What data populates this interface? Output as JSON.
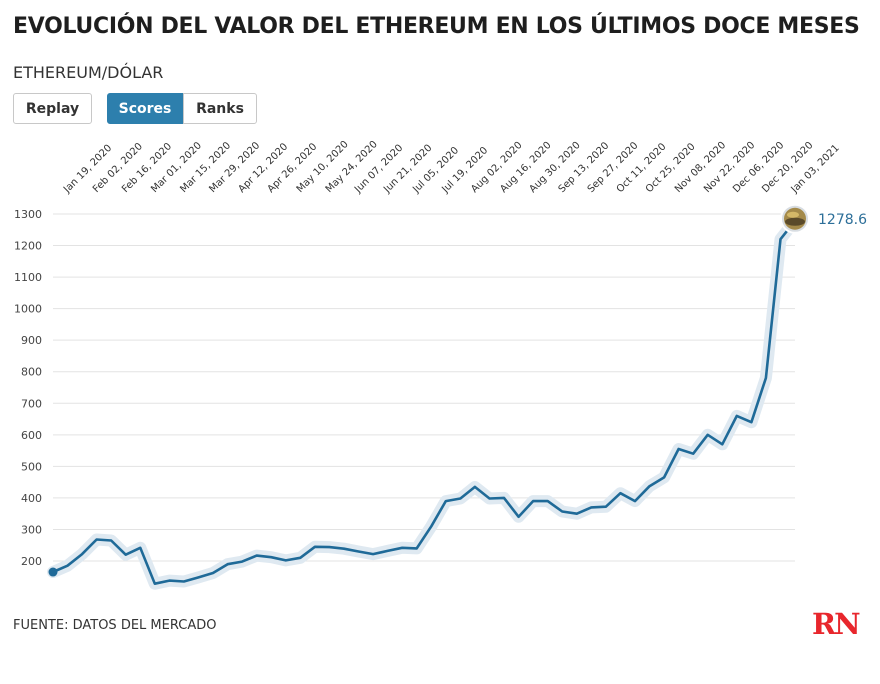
{
  "title": "EVOLUCIÓN DEL VALOR DEL ETHEREUM EN LOS ÚLTIMOS DOCE MESES",
  "subtitle": "ETHEREUM/DÓLAR",
  "controls": {
    "replay_label": "Replay",
    "scores_label": "Scores",
    "ranks_label": "Ranks",
    "active": "Scores"
  },
  "footer": {
    "source": "FUENTE: DATOS DEL MERCADO",
    "logo_text": "RN"
  },
  "colors": {
    "line": "#1f6a98",
    "halo": "#dfe9f1",
    "grid": "#e3e3e3",
    "active_button": "#2d7fad",
    "logo": "#e8262c"
  },
  "chart_data": {
    "type": "line",
    "title": "EVOLUCIÓN DEL VALOR DEL ETHEREUM EN LOS ÚLTIMOS DOCE MESES",
    "subtitle": "ETHEREUM/DÓLAR",
    "xlabel": "",
    "ylabel": "",
    "ylim": [
      150,
      1300
    ],
    "yticks": [
      200,
      300,
      400,
      500,
      600,
      700,
      800,
      900,
      1000,
      1100,
      1200,
      1300
    ],
    "x_tick_labels": [
      "Jan 19, 2020",
      "Feb 02, 2020",
      "Feb 16, 2020",
      "Mar 01, 2020",
      "Mar 15, 2020",
      "Mar 29, 2020",
      "Apr 12, 2020",
      "Apr 26, 2020",
      "May 10, 2020",
      "May 24, 2020",
      "Jun 07, 2020",
      "Jun 21, 2020",
      "Jul 05, 2020",
      "Jul 19, 2020",
      "Aug 02, 2020",
      "Aug 16, 2020",
      "Aug 30, 2020",
      "Sep 13, 2020",
      "Sep 27, 2020",
      "Oct 11, 2020",
      "Oct 25, 2020",
      "Nov 08, 2020",
      "Nov 22, 2020",
      "Dec 06, 2020",
      "Dec 20, 2020",
      "Jan 03, 2021"
    ],
    "grid": true,
    "legend": "none",
    "end_label": "1278.6",
    "series": [
      {
        "x": [
          "Jan 12, 2020",
          "Jan 19, 2020",
          "Jan 26, 2020",
          "Feb 02, 2020",
          "Feb 09, 2020",
          "Feb 16, 2020",
          "Feb 23, 2020",
          "Mar 01, 2020",
          "Mar 08, 2020",
          "Mar 15, 2020",
          "Mar 22, 2020",
          "Mar 29, 2020",
          "Apr 05, 2020",
          "Apr 12, 2020",
          "Apr 19, 2020",
          "Apr 26, 2020",
          "May 03, 2020",
          "May 10, 2020",
          "May 17, 2020",
          "May 24, 2020",
          "May 31, 2020",
          "Jun 07, 2020",
          "Jun 14, 2020",
          "Jun 21, 2020",
          "Jun 28, 2020",
          "Jul 05, 2020",
          "Jul 12, 2020",
          "Jul 19, 2020",
          "Jul 26, 2020",
          "Aug 02, 2020",
          "Aug 09, 2020",
          "Aug 16, 2020",
          "Aug 23, 2020",
          "Aug 30, 2020",
          "Sep 06, 2020",
          "Sep 13, 2020",
          "Sep 20, 2020",
          "Sep 27, 2020",
          "Oct 04, 2020",
          "Oct 11, 2020",
          "Oct 18, 2020",
          "Oct 25, 2020",
          "Nov 01, 2020",
          "Nov 08, 2020",
          "Nov 15, 2020",
          "Nov 22, 2020",
          "Nov 29, 2020",
          "Dec 06, 2020",
          "Dec 13, 2020",
          "Dec 20, 2020",
          "Dec 27, 2020",
          "Jan 03, 2021"
        ],
        "values": [
          165,
          185,
          222,
          268,
          265,
          220,
          242,
          128,
          138,
          135,
          148,
          162,
          190,
          198,
          217,
          212,
          202,
          210,
          245,
          244,
          239,
          230,
          222,
          232,
          242,
          240,
          310,
          390,
          398,
          435,
          398,
          400,
          340,
          390,
          390,
          357,
          350,
          370,
          372,
          415,
          390,
          437,
          465,
          555,
          540,
          600,
          570,
          660,
          640,
          780,
          1220,
          1278.6
        ]
      }
    ]
  }
}
